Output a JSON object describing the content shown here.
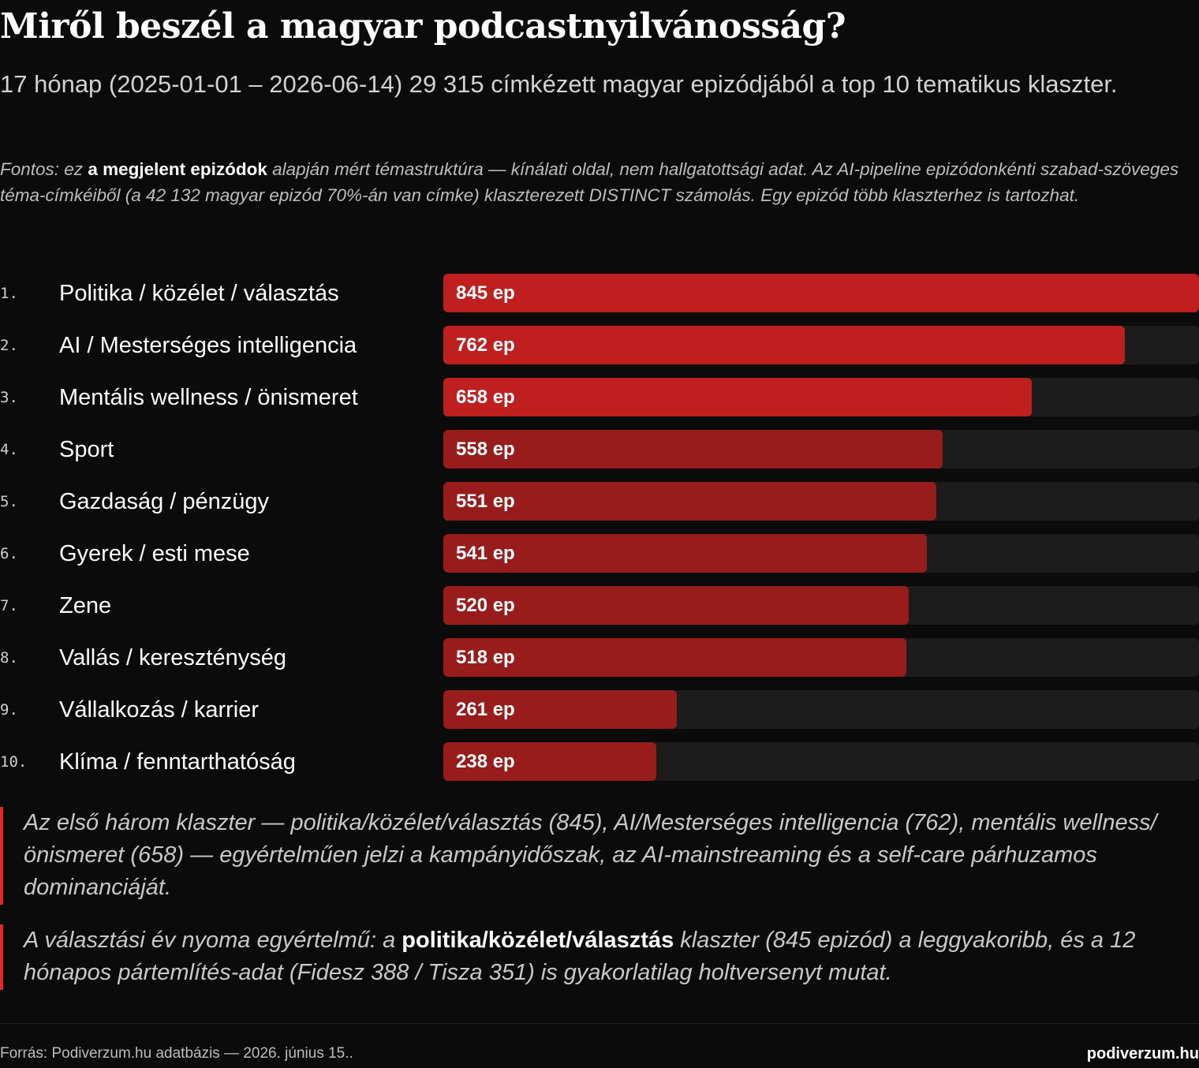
{
  "header": {
    "title": "Miről beszél a magyar podcastnyilvánosság?",
    "subtitle": "17 hónap (2025-01-01 – 2026-06-14) 29 315 címkézett magyar epizódjából a top 10 tematikus klaszter."
  },
  "note": {
    "prefix": "Fontos: ez ",
    "emphasis": "a megjelent epizódok",
    "suffix": " alapján mért témastruktúra — kínálati oldal, nem hallgatottsági adat. Az AI-pipeline epizódonkénti szabad-szöveges téma-címkéiből (a 42 132 magyar epizód 70%-án van címke) klaszterezett DISTINCT számolás. Egy epizód több klaszterhez is tartozhat."
  },
  "chart_data": {
    "type": "bar",
    "orientation": "horizontal",
    "value_suffix": " ep",
    "xlim": [
      0,
      845
    ],
    "colors": {
      "top": "#c01f1f",
      "rest": "#981c1c",
      "track": "#1c1c1c"
    },
    "categories": [
      "Politika / közélet / választás",
      "AI / Mesterséges intelligencia",
      "Mentális wellness / önismeret",
      "Sport",
      "Gazdaság / pénzügy",
      "Gyerek / esti mese",
      "Zene",
      "Vallás / kereszténység",
      "Vállalkozás / karrier",
      "Klíma / fenntarthatóság"
    ],
    "ranks": [
      "1.",
      "2.",
      "3.",
      "4.",
      "5.",
      "6.",
      "7.",
      "8.",
      "9.",
      "10."
    ],
    "values": [
      845,
      762,
      658,
      558,
      551,
      541,
      520,
      518,
      261,
      238
    ]
  },
  "quotes": {
    "q1": "Az első három klaszter — politika/közélet/választás (845), AI/Mesterséges intelligencia (762), mentális wellness/önismeret (658) — egyértelműen jelzi a kampányidőszak, az AI-mainstreaming és a self-care párhuzamos dominanciáját.",
    "q2_prefix": "A választási év nyoma egyértelmű: a ",
    "q2_emphasis": "politika/közélet/választás",
    "q2_suffix": " klaszter (845 epizód) a leggyakoribb, és a 12 hónapos pártemlítés-adat (Fidesz 388 / Tisza 351) is gyakorlatilag holtversenyt mutat."
  },
  "footer": {
    "source": "Forrás: Podiverzum.hu adatbázis — 2026. június 15..",
    "brand": "podiverzum.hu"
  }
}
